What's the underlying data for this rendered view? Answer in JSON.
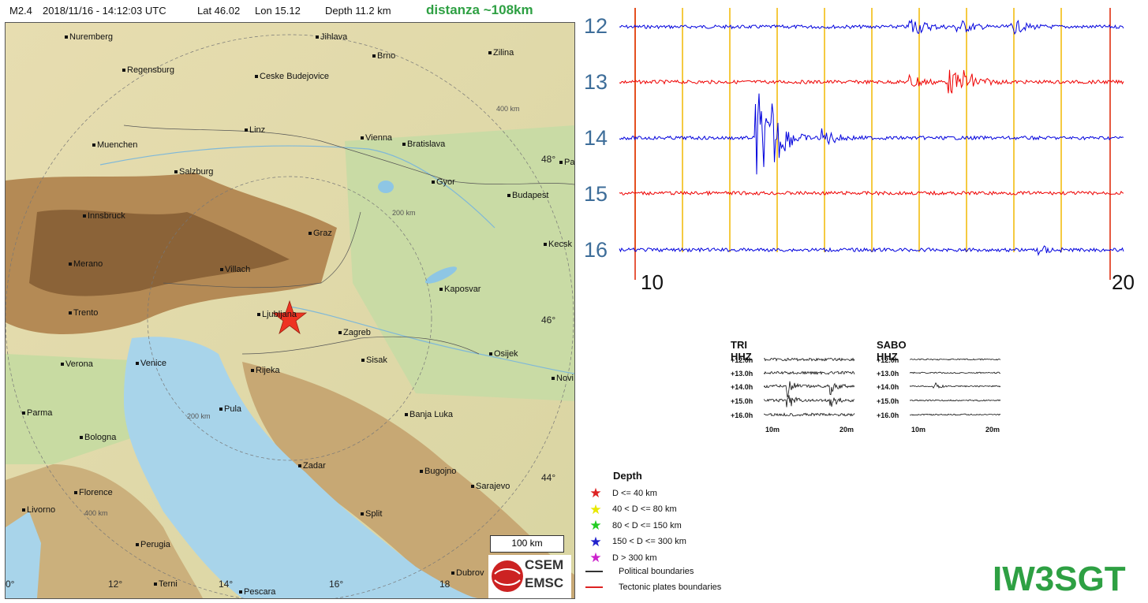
{
  "header": {
    "magnitude": "M2.4",
    "datetime": "2018/11/16 - 14:12:03 UTC",
    "lat": "Lat 46.02",
    "lon": "Lon 15.12",
    "depth": "Depth  11.2 km",
    "distance": "distanza ~108km"
  },
  "map": {
    "cities": [
      {
        "name": "Nuremberg"
      },
      {
        "name": "Jihlava"
      },
      {
        "name": "Brno"
      },
      {
        "name": "Zilina"
      },
      {
        "name": "Regensburg"
      },
      {
        "name": "Ceske Budejovice"
      },
      {
        "name": "Linz"
      },
      {
        "name": "Vienna"
      },
      {
        "name": "Bratislava"
      },
      {
        "name": "Muenchen"
      },
      {
        "name": "Salzburg"
      },
      {
        "name": "Gyor"
      },
      {
        "name": "Budapest"
      },
      {
        "name": "Pa"
      },
      {
        "name": "Innsbruck"
      },
      {
        "name": "Graz"
      },
      {
        "name": "Kecsk"
      },
      {
        "name": "Merano"
      },
      {
        "name": "Villach"
      },
      {
        "name": "Kaposvar"
      },
      {
        "name": "Trento"
      },
      {
        "name": "Ljubljana"
      },
      {
        "name": "Zagreb"
      },
      {
        "name": "Osijek"
      },
      {
        "name": "Verona"
      },
      {
        "name": "Venice"
      },
      {
        "name": "Rijeka"
      },
      {
        "name": "Sisak"
      },
      {
        "name": "Novi"
      },
      {
        "name": "Parma"
      },
      {
        "name": "Pula"
      },
      {
        "name": "Banja Luka"
      },
      {
        "name": "Bologna"
      },
      {
        "name": "Zadar"
      },
      {
        "name": "Bugojno"
      },
      {
        "name": "Florence"
      },
      {
        "name": "Sarajevo"
      },
      {
        "name": "Livorno"
      },
      {
        "name": "Split"
      },
      {
        "name": "Perugia"
      },
      {
        "name": "Terni"
      },
      {
        "name": "Pescara"
      },
      {
        "name": "Dubrov"
      }
    ],
    "range_labels": [
      "400 km",
      "200 km",
      "200 km",
      "400 km"
    ],
    "lat_labels": [
      "48°",
      "46°",
      "44°"
    ],
    "lon_labels": [
      "0°",
      "12°",
      "14°",
      "16°",
      "18"
    ],
    "scale_label": "100 km",
    "logo_lines": [
      "CSEM",
      "EMSC"
    ],
    "epicenter_color": "#ee3322"
  },
  "seismogram": {
    "hours": [
      "12",
      "13",
      "14",
      "15",
      "16"
    ],
    "trace_colors": [
      "#0000dd",
      "#ee0000",
      "#0000dd",
      "#ee0000",
      "#0000dd"
    ],
    "x_start_label": "10",
    "x_end_label": "20",
    "minute_line_color": "#f2b800",
    "boundary_line_color": "#dd2200"
  },
  "mini_plots": [
    {
      "title": "TRI HHZ",
      "rows": [
        "+12.0h",
        "+13.0h",
        "+14.0h",
        "+15.0h",
        "+16.0h"
      ],
      "x_labels": [
        "10m",
        "20m"
      ]
    },
    {
      "title": "SABO HHZ",
      "rows": [
        "+12.0h",
        "+13.0h",
        "+14.0h",
        "+15.0h",
        "+16.0h"
      ],
      "x_labels": [
        "10m",
        "20m"
      ]
    }
  ],
  "legend": {
    "title": "Depth",
    "items": [
      {
        "label": "D <= 40 km",
        "color": "#dd2222",
        "kind": "star"
      },
      {
        "label": "40 < D <= 80 km",
        "color": "#e8e800",
        "kind": "star"
      },
      {
        "label": "80 < D <= 150 km",
        "color": "#22cc22",
        "kind": "star"
      },
      {
        "label": "150 < D <= 300 km",
        "color": "#2222cc",
        "kind": "star"
      },
      {
        "label": "D > 300 km",
        "color": "#cc22cc",
        "kind": "star"
      },
      {
        "label": "Political boundaries",
        "color": "#333333",
        "kind": "line"
      },
      {
        "label": "Tectonic plates boundaries",
        "color": "#dd2222",
        "kind": "line"
      }
    ]
  },
  "callsign": "IW3SGT"
}
